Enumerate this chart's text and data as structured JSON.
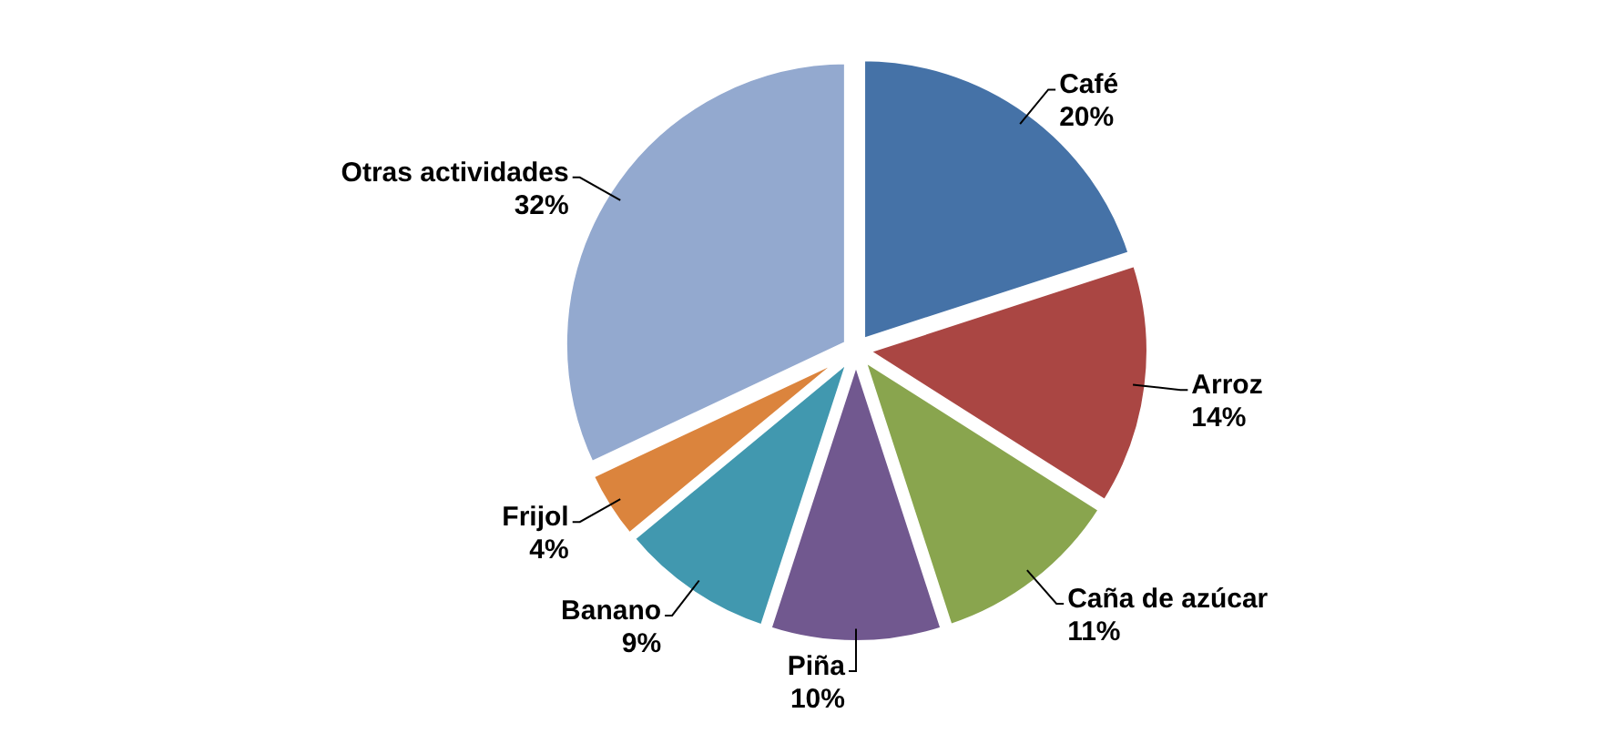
{
  "chart_data": {
    "type": "pie",
    "categories": [
      "Café",
      "Arroz",
      "Caña de azúcar",
      "Piña",
      "Banano",
      "Frijol",
      "Otras actividades"
    ],
    "values": [
      20,
      14,
      11,
      10,
      9,
      4,
      32
    ],
    "value_labels": [
      "20%",
      "14%",
      "11%",
      "10%",
      "9%",
      "4%",
      "32%"
    ],
    "colors": [
      "#4572a7",
      "#aa4643",
      "#89a54e",
      "#71588f",
      "#4198af",
      "#db843d",
      "#93a9cf"
    ]
  }
}
